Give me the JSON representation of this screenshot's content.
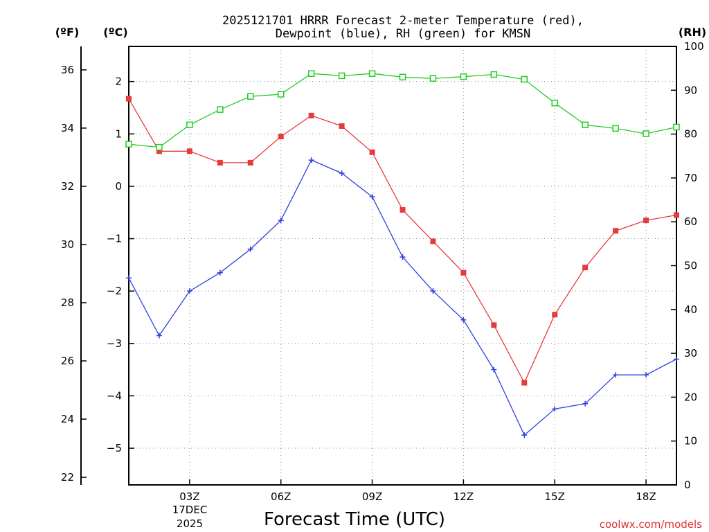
{
  "chart_data": {
    "type": "line",
    "title_line1": "2025121701 HRRR Forecast 2-meter Temperature (red),",
    "title_line2": "Dewpoint (blue), RH (green) for KMSN",
    "xlabel": "Forecast Time (UTC)",
    "date_label_day": "17DEC",
    "date_label_year": "2025",
    "credit": "coolwx.com/models",
    "units": {
      "fahrenheit": "(ºF)",
      "celsius": "(ºC)",
      "rh": "(RH)"
    },
    "x_hours": [
      1,
      2,
      3,
      4,
      5,
      6,
      7,
      8,
      9,
      10,
      11,
      12,
      13,
      14,
      15,
      16,
      17,
      18,
      19
    ],
    "x_ticks": [
      {
        "hour": 3,
        "label": "03Z"
      },
      {
        "hour": 6,
        "label": "06Z"
      },
      {
        "hour": 9,
        "label": "09Z"
      },
      {
        "hour": 12,
        "label": "12Z"
      },
      {
        "hour": 15,
        "label": "15Z"
      },
      {
        "hour": 18,
        "label": "18Z"
      }
    ],
    "xlim": [
      1,
      19
    ],
    "celsius_axis": {
      "ylim": [
        -5.7,
        2.67
      ],
      "ticks": [
        2,
        1,
        0,
        -1,
        -2,
        -3,
        -4,
        -5
      ],
      "tick_labels": [
        "2",
        "1",
        "0",
        "−1",
        "−2",
        "−3",
        "−4",
        "−5"
      ]
    },
    "fahrenheit_axis": {
      "ticks": [
        36,
        34,
        32,
        30,
        28,
        26,
        24,
        22
      ],
      "tick_labels": [
        "36",
        "34",
        "32",
        "30",
        "28",
        "26",
        "24",
        "22"
      ]
    },
    "rh_axis": {
      "ylim": [
        0,
        100
      ],
      "ticks": [
        100,
        90,
        80,
        70,
        60,
        50,
        40,
        30,
        20,
        10,
        0
      ],
      "tick_labels": [
        "100",
        "90",
        "80",
        "70",
        "60",
        "50",
        "40",
        "30",
        "20",
        "10",
        "0"
      ]
    },
    "series": [
      {
        "name": "Temperature",
        "axis": "celsius",
        "color": "#e83a3a",
        "marker": "filled-square",
        "values": [
          1.67,
          0.67,
          0.67,
          0.45,
          0.45,
          0.95,
          1.35,
          1.15,
          0.65,
          -0.45,
          -1.05,
          -1.65,
          -2.65,
          -3.75,
          -2.45,
          -1.55,
          -0.85,
          -0.65,
          -0.55
        ]
      },
      {
        "name": "Dewpoint",
        "axis": "celsius",
        "color": "#2f3fe0",
        "marker": "plus",
        "values": [
          -1.75,
          -2.85,
          -2.0,
          -1.65,
          -1.2,
          -0.65,
          0.5,
          0.25,
          -0.2,
          -1.35,
          -2.0,
          -2.55,
          -3.5,
          -4.75,
          -4.25,
          -4.15,
          -3.6,
          -3.6,
          -3.3
        ]
      },
      {
        "name": "RH",
        "axis": "rh",
        "color": "#22cc22",
        "marker": "open-square",
        "values": [
          77.7,
          77,
          82.1,
          85.6,
          88.6,
          89.1,
          93.8,
          93.3,
          93.8,
          93,
          92.7,
          93.1,
          93.6,
          92.5,
          87.1,
          82.1,
          81.3,
          80.1,
          81.6
        ]
      }
    ]
  }
}
